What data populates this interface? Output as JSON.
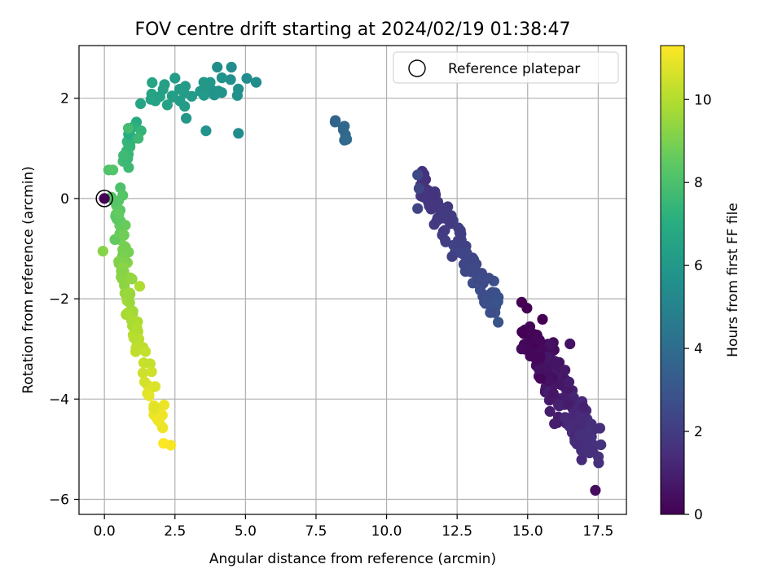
{
  "chart_data": {
    "type": "scatter",
    "title": "FOV centre drift starting at 2024/02/19 01:38:47",
    "xlabel": "Angular distance from reference (arcmin)",
    "ylabel": "Rotation from reference (arcmin)",
    "xlim": [
      -0.9,
      18.5
    ],
    "ylim": [
      -6.3,
      3.05
    ],
    "x_ticks": [
      0.0,
      2.5,
      5.0,
      7.5,
      10.0,
      12.5,
      15.0,
      17.5
    ],
    "x_tick_labels": [
      "0.0",
      "2.5",
      "5.0",
      "7.5",
      "10.0",
      "12.5",
      "15.0",
      "17.5"
    ],
    "y_ticks": [
      -6,
      -4,
      -2,
      0,
      2
    ],
    "y_tick_labels": [
      "−6",
      "−4",
      "−2",
      "0",
      "2"
    ],
    "grid": true,
    "legend": {
      "placement": "top-right",
      "entries": [
        {
          "label": "Reference platepar",
          "marker": "hollow-circle"
        }
      ]
    },
    "colorbar": {
      "label": "Hours from first FF file",
      "colormap": "viridis",
      "range": [
        0,
        11.3
      ],
      "ticks": [
        0,
        2,
        4,
        6,
        8,
        10
      ],
      "tick_labels": [
        "0",
        "2",
        "4",
        "6",
        "8",
        "10"
      ]
    },
    "reference_point": {
      "x": 0.0,
      "y": 0.0
    },
    "clusters": [
      {
        "t_start": 0.0,
        "t_end": 1.6,
        "n": 190,
        "x_start": 15.0,
        "y_start": -2.6,
        "x_end": 17.2,
        "y_end": -5.0,
        "spread_along": 0.7,
        "spread_perp": 0.45
      },
      {
        "t_start": 1.6,
        "t_end": 2.9,
        "n": 110,
        "x_start": 11.2,
        "y_start": 0.3,
        "x_end": 14.0,
        "y_end": -2.3,
        "spread_along": 0.5,
        "spread_perp": 0.3
      },
      {
        "t_start": 3.5,
        "t_end": 3.9,
        "n": 8,
        "x_start": 7.95,
        "y_start": 1.8,
        "x_end": 8.6,
        "y_end": 1.2,
        "spread_along": 0.3,
        "spread_perp": 0.1
      },
      {
        "t_start": 5.4,
        "t_end": 6.6,
        "n": 32,
        "x_start": 5.3,
        "y_start": 2.3,
        "x_end": 1.5,
        "y_end": 2.0,
        "spread_along": 0.35,
        "spread_perp": 0.28
      },
      {
        "t_start": 6.6,
        "t_end": 8.2,
        "n": 20,
        "x_start": 1.2,
        "y_start": 1.8,
        "x_end": 0.5,
        "y_end": 0.2,
        "spread_along": 0.3,
        "spread_perp": 0.15
      },
      {
        "t_start": 8.2,
        "t_end": 9.8,
        "n": 60,
        "x_start": 0.4,
        "y_start": 0.0,
        "x_end": 0.9,
        "y_end": -2.3,
        "spread_along": 0.35,
        "spread_perp": 0.22
      },
      {
        "t_start": 9.8,
        "t_end": 11.3,
        "n": 40,
        "x_start": 0.9,
        "y_start": -2.4,
        "x_end": 2.2,
        "y_end": -4.8,
        "spread_along": 0.3,
        "spread_perp": 0.2
      }
    ],
    "fixed_points": [
      {
        "x": 17.4,
        "y": -5.82,
        "t": 0.4
      },
      {
        "x": 16.5,
        "y": -2.9,
        "t": 0.5
      },
      {
        "x": 11.1,
        "y": 0.47,
        "t": 2.5
      },
      {
        "x": 11.15,
        "y": 0.2,
        "t": 2.4
      },
      {
        "x": 11.1,
        "y": -0.2,
        "t": 2.3
      },
      {
        "x": 4.75,
        "y": 1.3,
        "t": 5.5
      },
      {
        "x": 3.6,
        "y": 1.35,
        "t": 5.8
      },
      {
        "x": 2.9,
        "y": 1.6,
        "t": 6.0
      },
      {
        "x": 1.3,
        "y": 1.35,
        "t": 7.4
      },
      {
        "x": 1.2,
        "y": 1.2,
        "t": 7.6
      },
      {
        "x": 0.85,
        "y": 1.4,
        "t": 7.8
      },
      {
        "x": 0.15,
        "y": 0.57,
        "t": 8.1
      },
      {
        "x": 0.3,
        "y": 0.57,
        "t": 8.2
      },
      {
        "x": 2.35,
        "y": -4.92,
        "t": 11.2
      },
      {
        "x": 2.05,
        "y": -4.56,
        "t": 11.0
      },
      {
        "x": 1.8,
        "y": -3.75,
        "t": 10.7
      },
      {
        "x": 1.25,
        "y": -1.75,
        "t": 9.9
      },
      {
        "x": -0.05,
        "y": -1.05,
        "t": 9.2
      },
      {
        "x": 4.0,
        "y": 2.62,
        "t": 5.5
      },
      {
        "x": 4.5,
        "y": 2.62,
        "t": 5.4
      },
      {
        "x": 2.5,
        "y": 2.4,
        "t": 6.2
      }
    ]
  }
}
